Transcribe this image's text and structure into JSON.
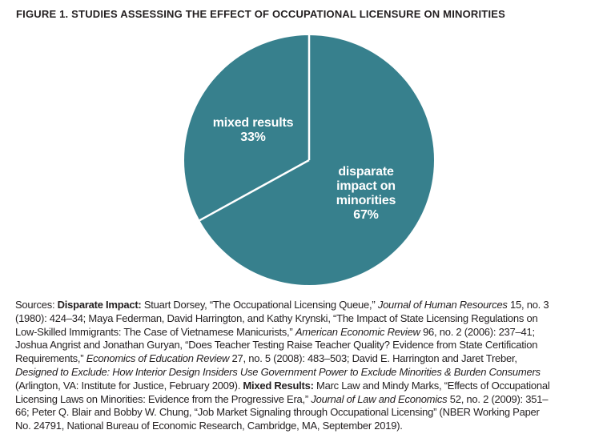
{
  "figure_title": "FIGURE 1. STUDIES ASSESSING THE EFFECT OF OCCUPATIONAL LICENSURE ON MINORITIES",
  "chart_data": {
    "type": "pie",
    "title": "FIGURE 1. STUDIES ASSESSING THE EFFECT OF OCCUPATIONAL LICENSURE ON MINORITIES",
    "start_angle_deg_from_top": 0,
    "direction": "clockwise",
    "slices": [
      {
        "label": "disparate impact on minorities",
        "value_pct": 67,
        "display_lines": [
          "disparate",
          "impact on",
          "minorities",
          "67%"
        ]
      },
      {
        "label": "mixed results",
        "value_pct": 33,
        "display_lines": [
          "mixed results",
          "33%"
        ]
      }
    ],
    "slice_fill": "#37808D",
    "divider_color": "#FFFFFF",
    "label_color": "#FFFFFF",
    "legend": "none",
    "labels_position": "inside slices"
  },
  "sources": {
    "lines": [
      [
        {
          "t": "Sources: "
        },
        {
          "t": "Disparate Impact: ",
          "b": true
        },
        {
          "t": "Stuart Dorsey, “The Occupational Licensing Queue,” "
        },
        {
          "t": "Journal of Human Resources",
          "i": true
        },
        {
          "t": " 15, no. 3"
        }
      ],
      [
        {
          "t": "(1980): 424–34; Maya Federman, David Harrington, and Kathy Krynski, “The Impact of State Licensing Regulations on"
        }
      ],
      [
        {
          "t": "Low-Skilled Immigrants: The Case of Vietnamese Manicurists,” "
        },
        {
          "t": "American Economic Review",
          "i": true
        },
        {
          "t": " 96, no. 2 (2006): 237–41;"
        }
      ],
      [
        {
          "t": "Joshua Angrist and Jonathan Guryan, “Does Teacher Testing Raise Teacher Quality? Evidence from State Certification"
        }
      ],
      [
        {
          "t": "Requirements,” "
        },
        {
          "t": "Economics of Education Review",
          "i": true
        },
        {
          "t": " 27, no. 5 (2008): 483–503; David E. Harrington and Jaret Treber,"
        }
      ],
      [
        {
          "t": "Designed to Exclude: How Interior Design Insiders Use Government Power to Exclude Minorities & Burden Consumers",
          "i": true
        }
      ],
      [
        {
          "t": "(Arlington, VA: Institute for Justice, February 2009). "
        },
        {
          "t": "Mixed Results: ",
          "b": true
        },
        {
          "t": "Marc Law and Mindy Marks, “Effects of Occupational"
        }
      ],
      [
        {
          "t": "Licensing Laws on Minorities: Evidence from the Progressive Era,” "
        },
        {
          "t": "Journal of Law and Economics",
          "i": true
        },
        {
          "t": " 52, no. 2 (2009): 351–"
        }
      ],
      [
        {
          "t": "66; Peter Q. Blair and Bobby W. Chung, “Job Market Signaling through Occupational Licensing” (NBER Working Paper"
        }
      ],
      [
        {
          "t": "No. 24791, National Bureau of Economic Research, Cambridge, MA, September 2019)."
        }
      ]
    ]
  }
}
